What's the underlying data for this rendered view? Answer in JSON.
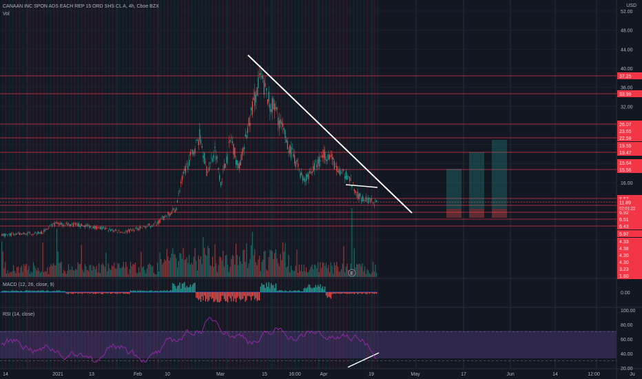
{
  "header": {
    "title": "CANAAN INC SPON ADS EACH REP 15 ORD SHS CL A, 4h, Cboe BZX",
    "volume_label": "Vol"
  },
  "currency": "USD",
  "price_axis": {
    "ticks": [
      "52.00",
      "48.00",
      "44.00",
      "40.00",
      "36.00",
      "32.00",
      "28.00",
      "24.00",
      "20.00",
      "16.00",
      "12.00",
      "8.00",
      "4.00"
    ]
  },
  "level_badges": [
    "37.25",
    "33.99",
    "26.07",
    "23.65",
    "22.59",
    "19.55",
    "19.47",
    "15.64",
    "15.56",
    "8.63",
    "7.39",
    "6.92",
    "6.51",
    "6.43",
    "5.97",
    "4.33",
    "4.38",
    "4.30",
    "4.30",
    "3.23",
    "1.80"
  ],
  "last_price": {
    "value": "11.89",
    "countdown": "02:01:22",
    "color": "#f23645"
  },
  "macd": {
    "label": "MACD (12, 26, close, 9)",
    "axis_tick": "0.00"
  },
  "rsi": {
    "label": "RSI (14, close)",
    "axis_ticks": [
      "100.00",
      "80.00",
      "60.00",
      "40.00",
      "20.00"
    ]
  },
  "time_axis": [
    "14",
    "2021",
    "13",
    "Feb",
    "10",
    "Mar",
    "15",
    "16:00",
    "Apr",
    "19",
    "May",
    "17",
    "Jun",
    "14",
    "12:00",
    "Ju"
  ],
  "event_marker": "E",
  "colors": {
    "up": "#26a69a",
    "down": "#ef5350",
    "level_line": "#f23645",
    "trendline": "#ffffff",
    "rsi_line": "#9c27b0"
  }
}
